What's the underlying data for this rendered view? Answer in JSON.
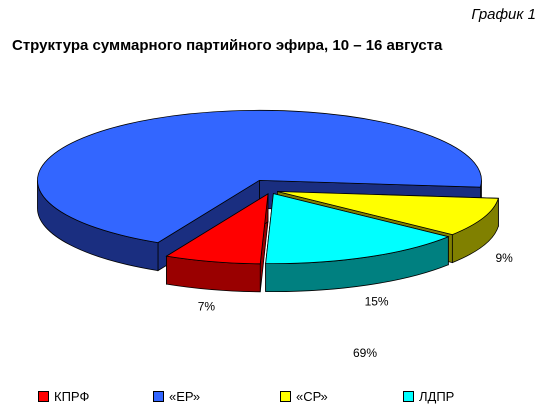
{
  "header": {
    "caption": "График 1",
    "title": "Структура суммарного партийного эфира, 10 – 16 августа"
  },
  "chart_data": {
    "type": "pie",
    "style": "3d-exploded",
    "title": "Структура суммарного партийного эфира, 10 – 16 августа",
    "slices": [
      {
        "name": "КПРФ",
        "value": 7,
        "label": "7%",
        "color": "#ff0000",
        "side_color": "#9a0000"
      },
      {
        "name": "«ЕР»",
        "value": 69,
        "label": "69%",
        "color": "#3366ff",
        "side_color": "#1a2e80"
      },
      {
        "name": "«СР»",
        "value": 9,
        "label": "9%",
        "color": "#ffff00",
        "side_color": "#808000"
      },
      {
        "name": "ЛДПР",
        "value": 15,
        "label": "15%",
        "color": "#00ffff",
        "side_color": "#008080"
      }
    ],
    "legend_position": "bottom"
  }
}
